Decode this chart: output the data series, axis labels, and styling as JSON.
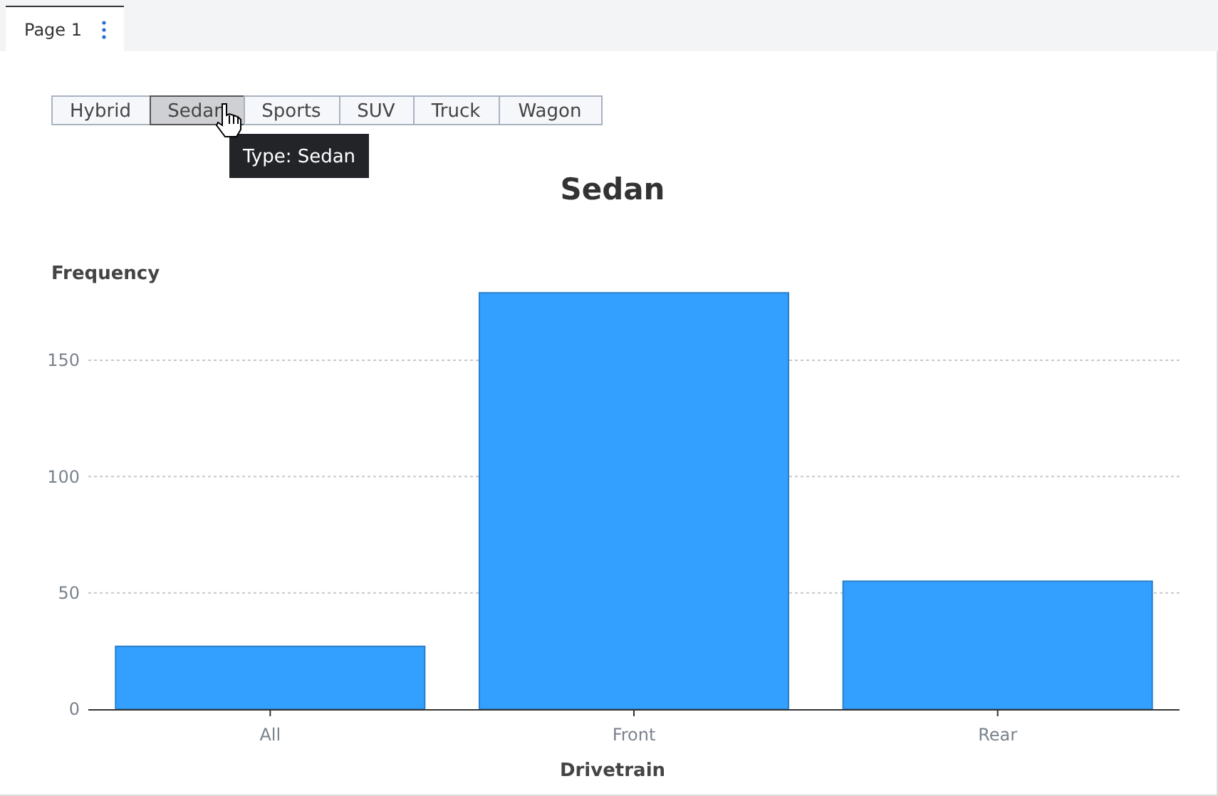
{
  "chart_data": {
    "type": "bar",
    "title": "Sedan",
    "xlabel": "Drivetrain",
    "ylabel": "Frequency",
    "categories": [
      "All",
      "Front",
      "Rear"
    ],
    "values": [
      27,
      179,
      55
    ],
    "color": "#33a0ff",
    "ylim": [
      0,
      180
    ],
    "yticks": [
      0,
      50,
      100,
      150
    ],
    "grid": "y",
    "annotations": [
      "Page 1",
      "Hybrid",
      "Sedan",
      "Sports",
      "SUV",
      "Truck",
      "Wagon",
      "Type: Sedan"
    ]
  }
}
